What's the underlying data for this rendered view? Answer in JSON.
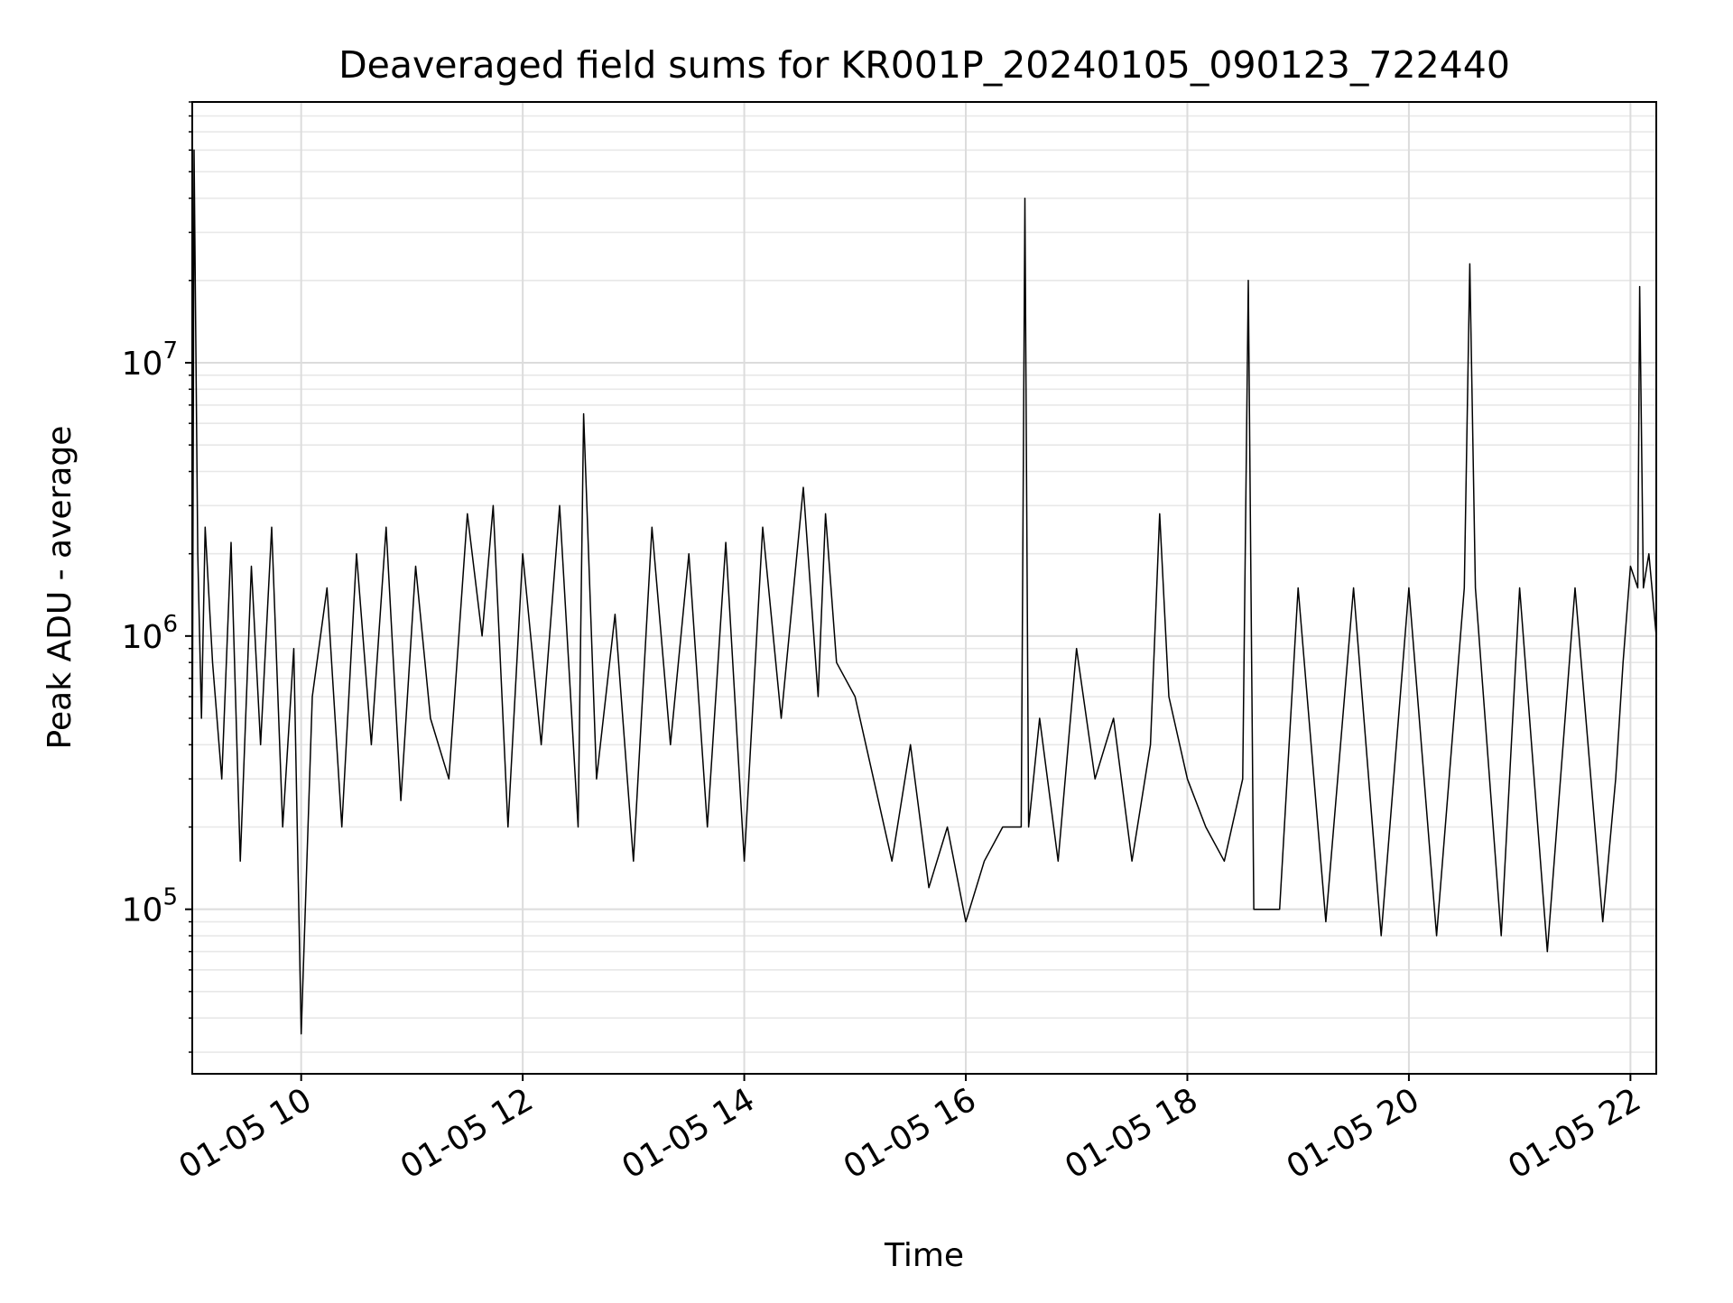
{
  "chart_data": {
    "type": "line",
    "title": "Deaveraged field sums for KR001P_20240105_090123_722440",
    "xlabel": "Time",
    "ylabel": "Peak ADU - average",
    "yscale": "log",
    "xlim": [
      "2024-01-05 09:01",
      "2024-01-05 22:14"
    ],
    "ylim": [
      25000,
      90000000
    ],
    "grid": true,
    "x_ticks": [
      {
        "value": "2024-01-05 10:00",
        "label": "01-05 10"
      },
      {
        "value": "2024-01-05 12:00",
        "label": "01-05 12"
      },
      {
        "value": "2024-01-05 14:00",
        "label": "01-05 14"
      },
      {
        "value": "2024-01-05 16:00",
        "label": "01-05 16"
      },
      {
        "value": "2024-01-05 18:00",
        "label": "01-05 18"
      },
      {
        "value": "2024-01-05 20:00",
        "label": "01-05 20"
      },
      {
        "value": "2024-01-05 22:00",
        "label": "01-05 22"
      }
    ],
    "y_ticks": [
      {
        "value": 100000,
        "base": "10",
        "exponent": "5"
      },
      {
        "value": 1000000,
        "base": "10",
        "exponent": "6"
      },
      {
        "value": 10000000,
        "base": "10",
        "exponent": "7"
      }
    ],
    "series": [
      {
        "color": "#000000",
        "x": [
          "2024-01-05 09:01",
          "2024-01-05 09:02",
          "2024-01-05 09:04",
          "2024-01-05 09:06",
          "2024-01-05 09:08",
          "2024-01-05 09:12",
          "2024-01-05 09:17",
          "2024-01-05 09:22",
          "2024-01-05 09:27",
          "2024-01-05 09:33",
          "2024-01-05 09:38",
          "2024-01-05 09:44",
          "2024-01-05 09:50",
          "2024-01-05 09:56",
          "2024-01-05 10:00",
          "2024-01-05 10:06",
          "2024-01-05 10:14",
          "2024-01-05 10:22",
          "2024-01-05 10:30",
          "2024-01-05 10:38",
          "2024-01-05 10:46",
          "2024-01-05 10:54",
          "2024-01-05 11:02",
          "2024-01-05 11:10",
          "2024-01-05 11:20",
          "2024-01-05 11:30",
          "2024-01-05 11:38",
          "2024-01-05 11:44",
          "2024-01-05 11:52",
          "2024-01-05 12:00",
          "2024-01-05 12:10",
          "2024-01-05 12:20",
          "2024-01-05 12:30",
          "2024-01-05 12:33",
          "2024-01-05 12:40",
          "2024-01-05 12:50",
          "2024-01-05 13:00",
          "2024-01-05 13:10",
          "2024-01-05 13:20",
          "2024-01-05 13:30",
          "2024-01-05 13:40",
          "2024-01-05 13:50",
          "2024-01-05 14:00",
          "2024-01-05 14:10",
          "2024-01-05 14:20",
          "2024-01-05 14:32",
          "2024-01-05 14:40",
          "2024-01-05 14:44",
          "2024-01-05 14:50",
          "2024-01-05 15:00",
          "2024-01-05 15:10",
          "2024-01-05 15:20",
          "2024-01-05 15:30",
          "2024-01-05 15:40",
          "2024-01-05 15:50",
          "2024-01-05 16:00",
          "2024-01-05 16:10",
          "2024-01-05 16:20",
          "2024-01-05 16:30",
          "2024-01-05 16:32",
          "2024-01-05 16:34",
          "2024-01-05 16:40",
          "2024-01-05 16:50",
          "2024-01-05 17:00",
          "2024-01-05 17:10",
          "2024-01-05 17:20",
          "2024-01-05 17:30",
          "2024-01-05 17:40",
          "2024-01-05 17:45",
          "2024-01-05 17:50",
          "2024-01-05 18:00",
          "2024-01-05 18:10",
          "2024-01-05 18:20",
          "2024-01-05 18:30",
          "2024-01-05 18:33",
          "2024-01-05 18:36",
          "2024-01-05 18:50",
          "2024-01-05 19:00",
          "2024-01-05 19:15",
          "2024-01-05 19:30",
          "2024-01-05 19:45",
          "2024-01-05 20:00",
          "2024-01-05 20:15",
          "2024-01-05 20:30",
          "2024-01-05 20:33",
          "2024-01-05 20:36",
          "2024-01-05 20:50",
          "2024-01-05 21:00",
          "2024-01-05 21:15",
          "2024-01-05 21:30",
          "2024-01-05 21:45",
          "2024-01-05 21:52",
          "2024-01-05 21:56",
          "2024-01-05 22:00",
          "2024-01-05 22:04",
          "2024-01-05 22:05",
          "2024-01-05 22:07",
          "2024-01-05 22:10",
          "2024-01-05 22:14"
        ],
        "y": [
          250000,
          60000000,
          2000000,
          500000,
          2500000,
          800000,
          300000,
          2200000,
          150000,
          1800000,
          400000,
          2500000,
          200000,
          900000,
          35000,
          600000,
          1500000,
          200000,
          2000000,
          400000,
          2500000,
          250000,
          1800000,
          500000,
          300000,
          2800000,
          1000000,
          3000000,
          200000,
          2000000,
          400000,
          3000000,
          200000,
          6500000,
          300000,
          1200000,
          150000,
          2500000,
          400000,
          2000000,
          200000,
          2200000,
          150000,
          2500000,
          500000,
          3500000,
          600000,
          2800000,
          800000,
          600000,
          300000,
          150000,
          400000,
          120000,
          200000,
          90000,
          150000,
          200000,
          200000,
          40000000,
          200000,
          500000,
          150000,
          900000,
          300000,
          500000,
          150000,
          400000,
          2800000,
          600000,
          300000,
          200000,
          150000,
          300000,
          20000000,
          100000,
          100000,
          1500000,
          90000,
          1500000,
          80000,
          1500000,
          80000,
          1500000,
          23000000,
          1500000,
          80000,
          1500000,
          70000,
          1500000,
          90000,
          300000,
          800000,
          1800000,
          1500000,
          19000000,
          1500000,
          2000000,
          1000000
        ]
      }
    ]
  }
}
